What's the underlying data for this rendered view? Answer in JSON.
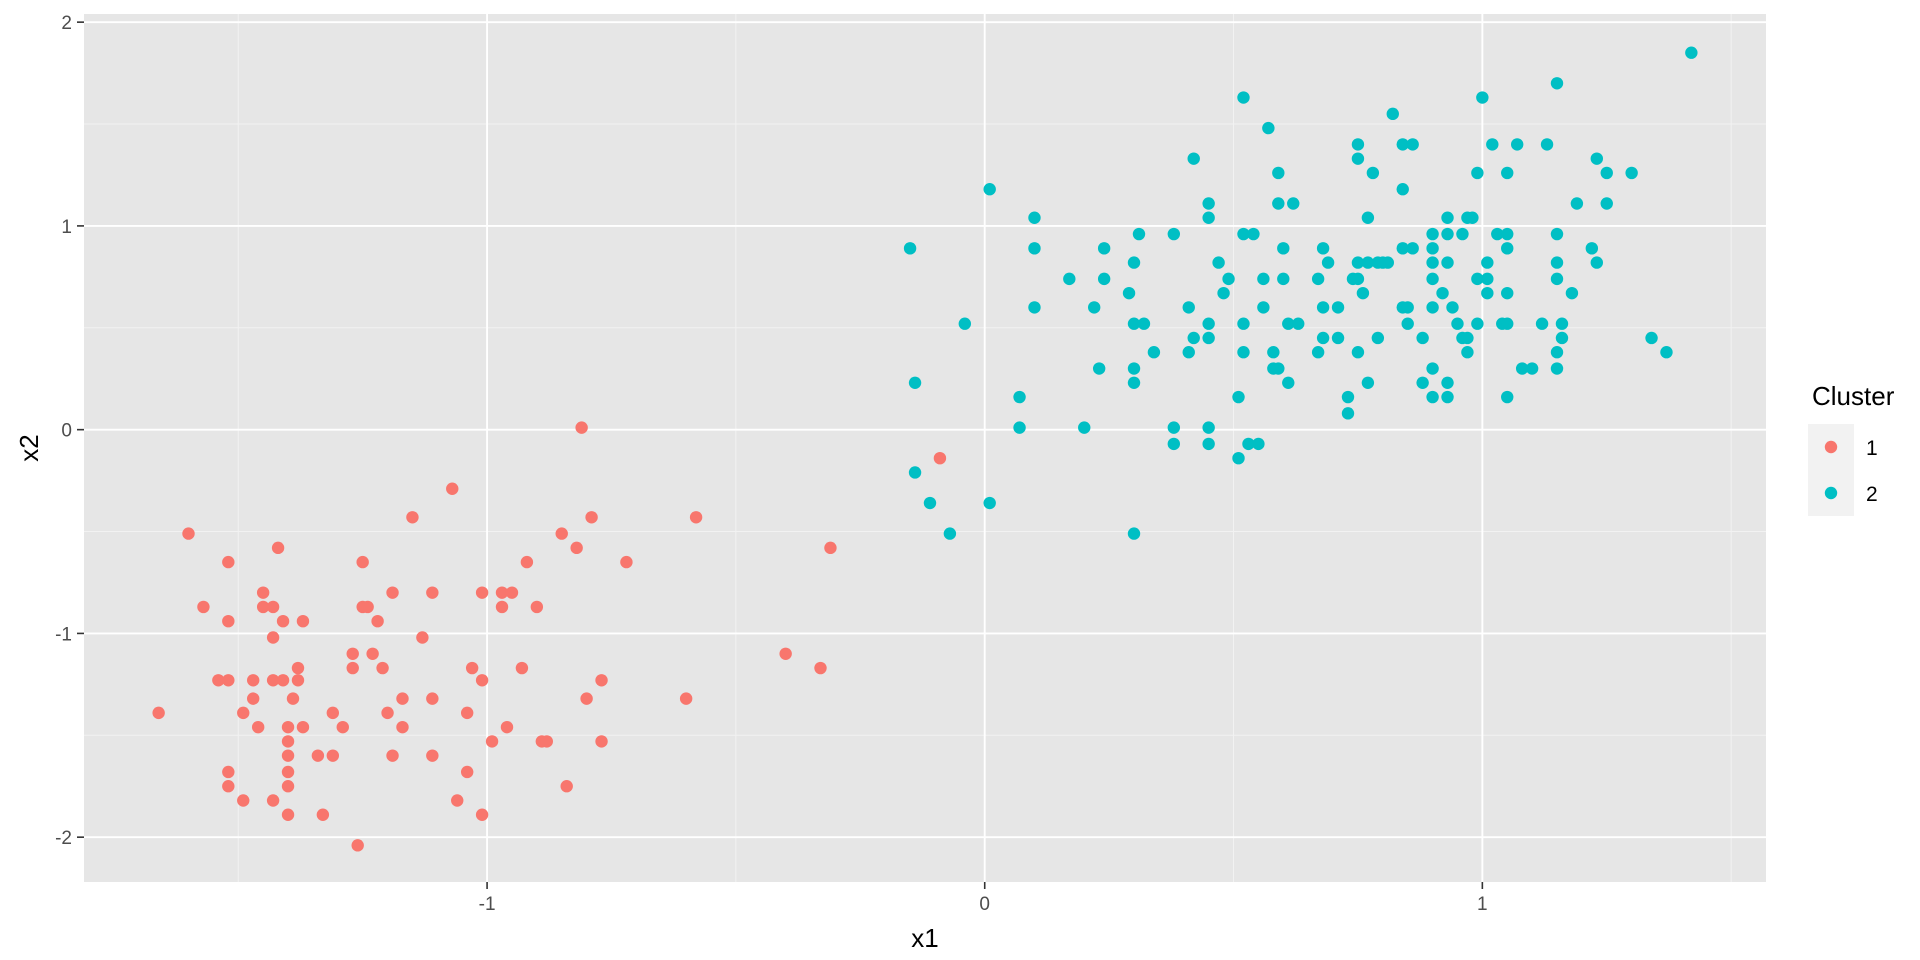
{
  "chart_data": {
    "type": "scatter",
    "title": "",
    "xlabel": "x1",
    "ylabel": "x2",
    "xlim": [
      -1.81,
      1.57
    ],
    "ylim": [
      -2.22,
      2.04
    ],
    "x_ticks": [
      -1,
      0,
      1
    ],
    "x_tick_labels": [
      "-1",
      "0",
      "1"
    ],
    "x_minor": [
      -1.5,
      -0.5,
      0.5,
      1.5
    ],
    "y_ticks": [
      -2,
      -1,
      0,
      1,
      2
    ],
    "y_tick_labels": [
      "-2",
      "-1",
      "0",
      "1",
      "2"
    ],
    "y_minor": [
      -1.5,
      -0.5,
      0.5,
      1.5
    ],
    "grid": true,
    "legend": {
      "title": "Cluster",
      "position": "right"
    },
    "series": [
      {
        "name": "1",
        "color": "#F8766D",
        "points": [
          [
            -1.66,
            -1.39
          ],
          [
            -1.6,
            -0.51
          ],
          [
            -1.57,
            -0.87
          ],
          [
            -1.54,
            -1.23
          ],
          [
            -1.52,
            -1.23
          ],
          [
            -1.52,
            -0.65
          ],
          [
            -1.52,
            -0.94
          ],
          [
            -1.52,
            -1.68
          ],
          [
            -1.52,
            -1.75
          ],
          [
            -1.49,
            -1.82
          ],
          [
            -1.49,
            -1.39
          ],
          [
            -1.47,
            -1.23
          ],
          [
            -1.47,
            -1.32
          ],
          [
            -1.46,
            -1.46
          ],
          [
            -1.45,
            -0.8
          ],
          [
            -1.45,
            -0.87
          ],
          [
            -1.43,
            -0.87
          ],
          [
            -1.43,
            -1.82
          ],
          [
            -1.43,
            -1.02
          ],
          [
            -1.42,
            -0.58
          ],
          [
            -1.43,
            -1.23
          ],
          [
            -1.41,
            -1.23
          ],
          [
            -1.41,
            -0.94
          ],
          [
            -1.4,
            -1.89
          ],
          [
            -1.39,
            -1.32
          ],
          [
            -1.4,
            -1.46
          ],
          [
            -1.4,
            -1.53
          ],
          [
            -1.4,
            -1.6
          ],
          [
            -1.4,
            -1.68
          ],
          [
            -1.4,
            -1.75
          ],
          [
            -1.38,
            -1.17
          ],
          [
            -1.38,
            -1.23
          ],
          [
            -1.37,
            -1.46
          ],
          [
            -1.37,
            -0.94
          ],
          [
            -1.34,
            -1.6
          ],
          [
            -1.33,
            -1.89
          ],
          [
            -1.31,
            -1.6
          ],
          [
            -1.31,
            -1.39
          ],
          [
            -1.29,
            -1.46
          ],
          [
            -1.27,
            -1.1
          ],
          [
            -1.27,
            -1.17
          ],
          [
            -1.26,
            -2.04
          ],
          [
            -1.25,
            -0.65
          ],
          [
            -1.25,
            -0.87
          ],
          [
            -1.24,
            -0.87
          ],
          [
            -1.23,
            -1.1
          ],
          [
            -1.22,
            -0.94
          ],
          [
            -1.21,
            -1.17
          ],
          [
            -1.2,
            -1.39
          ],
          [
            -1.19,
            -0.8
          ],
          [
            -1.19,
            -1.6
          ],
          [
            -1.17,
            -1.32
          ],
          [
            -1.17,
            -1.46
          ],
          [
            -1.15,
            -0.43
          ],
          [
            -1.13,
            -1.02
          ],
          [
            -1.11,
            -1.32
          ],
          [
            -1.11,
            -1.6
          ],
          [
            -1.11,
            -0.8
          ],
          [
            -1.07,
            -0.29
          ],
          [
            -1.06,
            -1.82
          ],
          [
            -1.04,
            -1.39
          ],
          [
            -1.04,
            -1.68
          ],
          [
            -1.03,
            -1.17
          ],
          [
            -1.01,
            -1.23
          ],
          [
            -1.01,
            -1.89
          ],
          [
            -1.01,
            -0.8
          ],
          [
            -0.99,
            -1.53
          ],
          [
            -0.97,
            -0.8
          ],
          [
            -0.97,
            -0.87
          ],
          [
            -0.95,
            -0.8
          ],
          [
            -0.96,
            -1.46
          ],
          [
            -0.93,
            -1.17
          ],
          [
            -0.92,
            -0.65
          ],
          [
            -0.9,
            -0.87
          ],
          [
            -0.89,
            -1.53
          ],
          [
            -0.88,
            -1.53
          ],
          [
            -0.85,
            -0.51
          ],
          [
            -0.84,
            -1.75
          ],
          [
            -0.82,
            -0.58
          ],
          [
            -0.81,
            0.01
          ],
          [
            -0.79,
            -0.43
          ],
          [
            -0.8,
            -1.32
          ],
          [
            -0.77,
            -1.53
          ],
          [
            -0.77,
            -1.23
          ],
          [
            -0.72,
            -0.65
          ],
          [
            -0.6,
            -1.32
          ],
          [
            -0.58,
            -0.43
          ],
          [
            -0.4,
            -1.1
          ],
          [
            -0.33,
            -1.17
          ],
          [
            -0.31,
            -0.58
          ],
          [
            -0.09,
            -0.14
          ]
        ]
      },
      {
        "name": "2",
        "color": "#00BFC4",
        "points": [
          [
            -0.15,
            0.89
          ],
          [
            -0.14,
            0.23
          ],
          [
            -0.14,
            -0.21
          ],
          [
            -0.11,
            -0.36
          ],
          [
            -0.07,
            -0.51
          ],
          [
            -0.04,
            0.52
          ],
          [
            0.01,
            1.18
          ],
          [
            0.01,
            -0.36
          ],
          [
            0.07,
            0.16
          ],
          [
            0.07,
            0.01
          ],
          [
            0.1,
            1.04
          ],
          [
            0.1,
            0.89
          ],
          [
            0.1,
            0.6
          ],
          [
            0.17,
            0.74
          ],
          [
            0.2,
            0.01
          ],
          [
            0.22,
            0.6
          ],
          [
            0.23,
            0.3
          ],
          [
            0.24,
            0.89
          ],
          [
            0.24,
            0.74
          ],
          [
            0.29,
            0.67
          ],
          [
            0.3,
            0.52
          ],
          [
            0.3,
            0.82
          ],
          [
            0.3,
            0.3
          ],
          [
            0.3,
            0.23
          ],
          [
            0.3,
            -0.51
          ],
          [
            0.32,
            0.52
          ],
          [
            0.31,
            0.96
          ],
          [
            0.34,
            0.38
          ],
          [
            0.38,
            0.96
          ],
          [
            0.38,
            0.01
          ],
          [
            0.38,
            -0.07
          ],
          [
            0.41,
            0.6
          ],
          [
            0.41,
            0.38
          ],
          [
            0.42,
            0.45
          ],
          [
            0.42,
            1.33
          ],
          [
            0.45,
            1.11
          ],
          [
            0.45,
            1.04
          ],
          [
            0.45,
            0.52
          ],
          [
            0.45,
            0.45
          ],
          [
            0.45,
            0.01
          ],
          [
            0.45,
            -0.07
          ],
          [
            0.47,
            0.82
          ],
          [
            0.48,
            0.67
          ],
          [
            0.49,
            0.74
          ],
          [
            0.51,
            0.16
          ],
          [
            0.51,
            -0.14
          ],
          [
            0.52,
            1.63
          ],
          [
            0.52,
            0.96
          ],
          [
            0.52,
            0.52
          ],
          [
            0.52,
            0.38
          ],
          [
            0.53,
            -0.07
          ],
          [
            0.54,
            0.96
          ],
          [
            0.55,
            -0.07
          ],
          [
            0.56,
            0.74
          ],
          [
            0.56,
            0.6
          ],
          [
            0.57,
            1.48
          ],
          [
            0.58,
            0.3
          ],
          [
            0.58,
            0.38
          ],
          [
            0.59,
            1.26
          ],
          [
            0.59,
            1.11
          ],
          [
            0.59,
            0.3
          ],
          [
            0.6,
            0.89
          ],
          [
            0.6,
            0.74
          ],
          [
            0.61,
            0.52
          ],
          [
            0.61,
            0.23
          ],
          [
            0.62,
            1.11
          ],
          [
            0.63,
            0.52
          ],
          [
            0.67,
            0.74
          ],
          [
            0.67,
            0.38
          ],
          [
            0.68,
            0.89
          ],
          [
            0.68,
            0.6
          ],
          [
            0.68,
            0.45
          ],
          [
            0.69,
            0.82
          ],
          [
            0.71,
            0.6
          ],
          [
            0.71,
            0.45
          ],
          [
            0.73,
            0.16
          ],
          [
            0.73,
            0.08
          ],
          [
            0.74,
            0.74
          ],
          [
            0.75,
            1.4
          ],
          [
            0.75,
            1.33
          ],
          [
            0.75,
            0.82
          ],
          [
            0.75,
            0.74
          ],
          [
            0.75,
            0.38
          ],
          [
            0.76,
            0.67
          ],
          [
            0.77,
            1.04
          ],
          [
            0.77,
            0.82
          ],
          [
            0.77,
            0.23
          ],
          [
            0.78,
            1.26
          ],
          [
            0.79,
            0.82
          ],
          [
            0.79,
            0.45
          ],
          [
            0.8,
            0.82
          ],
          [
            0.81,
            0.82
          ],
          [
            0.82,
            1.55
          ],
          [
            0.84,
            1.4
          ],
          [
            0.84,
            1.18
          ],
          [
            0.84,
            0.89
          ],
          [
            0.84,
            0.6
          ],
          [
            0.85,
            0.6
          ],
          [
            0.85,
            0.52
          ],
          [
            0.86,
            1.4
          ],
          [
            0.86,
            0.89
          ],
          [
            0.88,
            0.45
          ],
          [
            0.88,
            0.23
          ],
          [
            0.9,
            0.3
          ],
          [
            0.9,
            0.96
          ],
          [
            0.9,
            0.89
          ],
          [
            0.9,
            0.82
          ],
          [
            0.9,
            0.74
          ],
          [
            0.9,
            0.6
          ],
          [
            0.9,
            0.16
          ],
          [
            0.92,
            0.67
          ],
          [
            0.93,
            1.04
          ],
          [
            0.93,
            0.96
          ],
          [
            0.93,
            0.82
          ],
          [
            0.93,
            0.23
          ],
          [
            0.93,
            0.16
          ],
          [
            0.94,
            0.6
          ],
          [
            0.95,
            0.52
          ],
          [
            0.96,
            0.96
          ],
          [
            0.96,
            0.45
          ],
          [
            0.97,
            1.04
          ],
          [
            0.97,
            0.45
          ],
          [
            0.97,
            0.38
          ],
          [
            0.98,
            1.04
          ],
          [
            0.99,
            1.26
          ],
          [
            0.99,
            0.74
          ],
          [
            0.99,
            0.52
          ],
          [
            1.0,
            1.63
          ],
          [
            1.01,
            0.82
          ],
          [
            1.01,
            0.74
          ],
          [
            1.01,
            0.67
          ],
          [
            1.02,
            1.4
          ],
          [
            1.03,
            0.96
          ],
          [
            1.04,
            0.52
          ],
          [
            1.05,
            1.26
          ],
          [
            1.05,
            0.96
          ],
          [
            1.05,
            0.89
          ],
          [
            1.05,
            0.67
          ],
          [
            1.05,
            0.52
          ],
          [
            1.05,
            0.16
          ],
          [
            1.07,
            1.4
          ],
          [
            1.08,
            0.3
          ],
          [
            1.1,
            0.3
          ],
          [
            1.12,
            0.52
          ],
          [
            1.13,
            1.4
          ],
          [
            1.15,
            1.7
          ],
          [
            1.15,
            0.96
          ],
          [
            1.15,
            0.82
          ],
          [
            1.15,
            0.74
          ],
          [
            1.15,
            0.38
          ],
          [
            1.15,
            0.3
          ],
          [
            1.16,
            0.52
          ],
          [
            1.16,
            0.45
          ],
          [
            1.18,
            0.67
          ],
          [
            1.19,
            1.11
          ],
          [
            1.22,
            0.89
          ],
          [
            1.23,
            1.33
          ],
          [
            1.23,
            0.82
          ],
          [
            1.25,
            1.26
          ],
          [
            1.25,
            1.11
          ],
          [
            1.3,
            1.26
          ],
          [
            1.34,
            0.45
          ],
          [
            1.37,
            0.38
          ],
          [
            1.42,
            1.85
          ]
        ]
      }
    ]
  }
}
